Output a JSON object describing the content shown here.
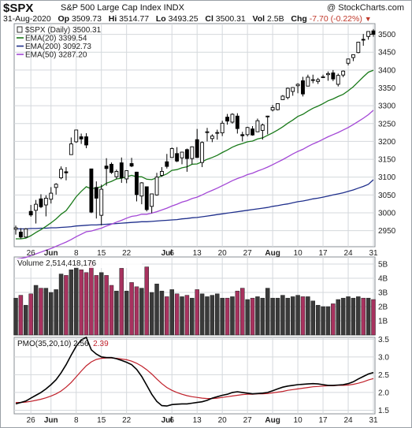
{
  "header": {
    "symbol": "$SPX",
    "description": "S&P 500 Large Cap Index  INDX",
    "brand": "@ StockCharts.com",
    "date": "31-Aug-2020",
    "open_label": "Op",
    "open": "3509.73",
    "high_label": "Hi",
    "high": "3514.77",
    "low_label": "Lo",
    "low": "3493.25",
    "close_label": "Cl",
    "close": "3500.31",
    "vol_label": "Vol",
    "vol": "2.5B",
    "chg_label": "Chg",
    "chg": "-7.70 (-0.22%)",
    "chg_arrow": "▼"
  },
  "colors": {
    "up_candle": "#ffffff",
    "down_candle": "#000000",
    "ema20": "#1a7a1a",
    "ema200": "#1f2f8c",
    "ema50": "#a347d6",
    "vol_up": "#3a3a3a",
    "vol_down": "#a8325f",
    "pmo": "#000000",
    "pmo_signal": "#c0202a"
  },
  "chart_data": [
    {
      "type": "candlestick",
      "title": "$SPX (Daily) 3500.31",
      "ylim": [
        2905,
        3530
      ],
      "yticks": [
        "2950",
        "3000",
        "3050",
        "3100",
        "3150",
        "3200",
        "3250",
        "3300",
        "3350",
        "3400",
        "3450",
        "3500"
      ],
      "x_tick_labels": [
        "26",
        "Jun",
        "8",
        "15",
        "22",
        "Jul",
        "6",
        "13",
        "20",
        "27",
        "Aug",
        "10",
        "17",
        "24",
        "31"
      ],
      "legend": [
        {
          "label": "$SPX (Daily) 3500.31",
          "color": "#000000"
        },
        {
          "label": "EMA(20) 3399.54",
          "color": "#1a7a1a"
        },
        {
          "label": "EMA(200) 3092.73",
          "color": "#1f2f8c"
        },
        {
          "label": "EMA(50) 3287.20",
          "color": "#a347d6"
        }
      ],
      "candles": [
        {
          "date": "May 20",
          "open": 2954,
          "high": 2964,
          "low": 2939,
          "close": 2958
        },
        {
          "date": "May 21",
          "open": 2946,
          "high": 2957,
          "low": 2928,
          "close": 2932
        },
        {
          "date": "May 22",
          "open": 2932,
          "high": 2957,
          "low": 2930,
          "close": 2955
        },
        {
          "date": "May 26",
          "open": 3004,
          "high": 3022,
          "low": 2989,
          "close": 2994
        },
        {
          "date": "May 27",
          "open": 3007,
          "high": 3036,
          "low": 2970,
          "close": 3024
        },
        {
          "date": "May 28",
          "open": 3039,
          "high": 3052,
          "low": 3013,
          "close": 3017
        },
        {
          "date": "May 29",
          "open": 3022,
          "high": 3049,
          "low": 2990,
          "close": 3041
        },
        {
          "date": "Jun 1",
          "open": 3038,
          "high": 3072,
          "low": 3026,
          "close": 3055
        },
        {
          "date": "Jun 2",
          "open": 3071,
          "high": 3083,
          "low": 3051,
          "close": 3080
        },
        {
          "date": "Jun 3",
          "open": 3098,
          "high": 3130,
          "low": 3094,
          "close": 3122
        },
        {
          "date": "Jun 4",
          "open": 3115,
          "high": 3128,
          "low": 3091,
          "close": 3112
        },
        {
          "date": "Jun 5",
          "open": 3163,
          "high": 3211,
          "low": 3163,
          "close": 3193
        },
        {
          "date": "Jun 8",
          "open": 3199,
          "high": 3233,
          "low": 3196,
          "close": 3232
        },
        {
          "date": "Jun 9",
          "open": 3213,
          "high": 3222,
          "low": 3193,
          "close": 3207
        },
        {
          "date": "Jun 10",
          "open": 3213,
          "high": 3223,
          "low": 3181,
          "close": 3190
        },
        {
          "date": "Jun 11",
          "open": 3123,
          "high": 3123,
          "low": 2999,
          "close": 3002
        },
        {
          "date": "Jun 12",
          "open": 3071,
          "high": 3088,
          "low": 2984,
          "close": 3041
        },
        {
          "date": "Jun 15",
          "open": 2993,
          "high": 3079,
          "low": 2965,
          "close": 3066
        },
        {
          "date": "Jun 16",
          "open": 3131,
          "high": 3153,
          "low": 3076,
          "close": 3124
        },
        {
          "date": "Jun 17",
          "open": 3136,
          "high": 3141,
          "low": 3109,
          "close": 3113
        },
        {
          "date": "Jun 18",
          "open": 3101,
          "high": 3121,
          "low": 3094,
          "close": 3116
        },
        {
          "date": "Jun 19",
          "open": 3140,
          "high": 3155,
          "low": 3084,
          "close": 3098
        },
        {
          "date": "Jun 22",
          "open": 3095,
          "high": 3118,
          "low": 3083,
          "close": 3118
        },
        {
          "date": "Jun 23",
          "open": 3138,
          "high": 3154,
          "low": 3128,
          "close": 3131
        },
        {
          "date": "Jun 24",
          "open": 3114,
          "high": 3115,
          "low": 3032,
          "close": 3051
        },
        {
          "date": "Jun 25",
          "open": 3047,
          "high": 3086,
          "low": 3024,
          "close": 3084
        },
        {
          "date": "Jun 26",
          "open": 3073,
          "high": 3073,
          "low": 3004,
          "close": 3009
        },
        {
          "date": "Jun 29",
          "open": 3018,
          "high": 3053,
          "low": 2999,
          "close": 3053
        },
        {
          "date": "Jun 30",
          "open": 3050,
          "high": 3112,
          "low": 3048,
          "close": 3100
        },
        {
          "date": "Jul 1",
          "open": 3105,
          "high": 3128,
          "low": 3101,
          "close": 3116
        },
        {
          "date": "Jul 2",
          "open": 3143,
          "high": 3165,
          "low": 3124,
          "close": 3130
        },
        {
          "date": "Jul 6",
          "open": 3155,
          "high": 3183,
          "low": 3155,
          "close": 3180
        },
        {
          "date": "Jul 7",
          "open": 3166,
          "high": 3184,
          "low": 3142,
          "close": 3145
        },
        {
          "date": "Jul 8",
          "open": 3154,
          "high": 3171,
          "low": 3136,
          "close": 3170
        },
        {
          "date": "Jul 9",
          "open": 3177,
          "high": 3180,
          "low": 3115,
          "close": 3152
        },
        {
          "date": "Jul 10",
          "open": 3152,
          "high": 3186,
          "low": 3136,
          "close": 3185
        },
        {
          "date": "Jul 13",
          "open": 3205,
          "high": 3235,
          "low": 3154,
          "close": 3155
        },
        {
          "date": "Jul 14",
          "open": 3141,
          "high": 3200,
          "low": 3128,
          "close": 3197
        },
        {
          "date": "Jul 15",
          "open": 3225,
          "high": 3238,
          "low": 3200,
          "close": 3227
        },
        {
          "date": "Jul 16",
          "open": 3208,
          "high": 3220,
          "low": 3198,
          "close": 3215
        },
        {
          "date": "Jul 17",
          "open": 3224,
          "high": 3233,
          "low": 3205,
          "close": 3225
        },
        {
          "date": "Jul 20",
          "open": 3224,
          "high": 3258,
          "low": 3215,
          "close": 3251
        },
        {
          "date": "Jul 21",
          "open": 3268,
          "high": 3277,
          "low": 3247,
          "close": 3257
        },
        {
          "date": "Jul 22",
          "open": 3254,
          "high": 3279,
          "low": 3250,
          "close": 3276
        },
        {
          "date": "Jul 23",
          "open": 3271,
          "high": 3279,
          "low": 3222,
          "close": 3236
        },
        {
          "date": "Jul 24",
          "open": 3219,
          "high": 3227,
          "low": 3200,
          "close": 3216
        },
        {
          "date": "Jul 27",
          "open": 3219,
          "high": 3241,
          "low": 3214,
          "close": 3239
        },
        {
          "date": "Jul 28",
          "open": 3235,
          "high": 3243,
          "low": 3216,
          "close": 3218
        },
        {
          "date": "Jul 29",
          "open": 3227,
          "high": 3264,
          "low": 3227,
          "close": 3258
        },
        {
          "date": "Jul 30",
          "open": 3231,
          "high": 3250,
          "low": 3205,
          "close": 3246
        },
        {
          "date": "Jul 31",
          "open": 3270,
          "high": 3272,
          "low": 3220,
          "close": 3271
        },
        {
          "date": "Aug 3",
          "open": 3288,
          "high": 3302,
          "low": 3284,
          "close": 3295
        },
        {
          "date": "Aug 4",
          "open": 3289,
          "high": 3306,
          "low": 3287,
          "close": 3306
        },
        {
          "date": "Aug 5",
          "open": 3317,
          "high": 3330,
          "low": 3318,
          "close": 3327
        },
        {
          "date": "Aug 6",
          "open": 3323,
          "high": 3351,
          "low": 3318,
          "close": 3349
        },
        {
          "date": "Aug 7",
          "open": 3340,
          "high": 3352,
          "low": 3328,
          "close": 3351
        },
        {
          "date": "Aug 10",
          "open": 3356,
          "high": 3363,
          "low": 3335,
          "close": 3360
        },
        {
          "date": "Aug 11",
          "open": 3370,
          "high": 3381,
          "low": 3326,
          "close": 3333
        },
        {
          "date": "Aug 12",
          "open": 3355,
          "high": 3387,
          "low": 3355,
          "close": 3380
        },
        {
          "date": "Aug 13",
          "open": 3372,
          "high": 3387,
          "low": 3363,
          "close": 3373
        },
        {
          "date": "Aug 14",
          "open": 3368,
          "high": 3378,
          "low": 3361,
          "close": 3373
        },
        {
          "date": "Aug 17",
          "open": 3380,
          "high": 3387,
          "low": 3379,
          "close": 3381
        },
        {
          "date": "Aug 18",
          "open": 3387,
          "high": 3396,
          "low": 3370,
          "close": 3390
        },
        {
          "date": "Aug 19",
          "open": 3392,
          "high": 3400,
          "low": 3369,
          "close": 3375
        },
        {
          "date": "Aug 20",
          "open": 3360,
          "high": 3390,
          "low": 3354,
          "close": 3385
        },
        {
          "date": "Aug 21",
          "open": 3386,
          "high": 3399,
          "low": 3380,
          "close": 3397
        },
        {
          "date": "Aug 24",
          "open": 3419,
          "high": 3432,
          "low": 3413,
          "close": 3431
        },
        {
          "date": "Aug 25",
          "open": 3435,
          "high": 3444,
          "low": 3425,
          "close": 3443
        },
        {
          "date": "Aug 26",
          "open": 3449,
          "high": 3479,
          "low": 3447,
          "close": 3478
        },
        {
          "date": "Aug 27",
          "open": 3486,
          "high": 3501,
          "low": 3468,
          "close": 3484
        },
        {
          "date": "Aug 28",
          "open": 3494,
          "high": 3509,
          "low": 3485,
          "close": 3508
        },
        {
          "date": "Aug 31",
          "open": 3509.73,
          "high": 3514.77,
          "low": 3493.25,
          "close": 3500.31
        }
      ],
      "ema20": [
        2927,
        2927,
        2929,
        2936,
        2945,
        2953,
        2962,
        2972,
        2983,
        2996,
        3006,
        3025,
        3045,
        3060,
        3073,
        3067,
        3070,
        3073,
        3083,
        3088,
        3095,
        3097,
        3101,
        3105,
        3101,
        3101,
        3094,
        3093,
        3098,
        3103,
        3109,
        3119,
        3121,
        3126,
        3129,
        3136,
        3137,
        3143,
        3150,
        3155,
        3161,
        3169,
        3176,
        3184,
        3190,
        3194,
        3199,
        3201,
        3207,
        3210,
        3217,
        3224,
        3232,
        3241,
        3251,
        3260,
        3270,
        3276,
        3285,
        3293,
        3299,
        3306,
        3314,
        3319,
        3326,
        3332,
        3342,
        3353,
        3367,
        3381,
        3394,
        3399.54
      ],
      "ema50": [
        2870,
        2872,
        2875,
        2880,
        2885,
        2890,
        2895,
        2900,
        2906,
        2912,
        2918,
        2925,
        2933,
        2940,
        2947,
        2949,
        2953,
        2957,
        2963,
        2968,
        2974,
        2979,
        2985,
        2990,
        2992,
        2996,
        2996,
        2999,
        3003,
        3008,
        3013,
        3019,
        3024,
        3030,
        3034,
        3040,
        3044,
        3050,
        3057,
        3063,
        3069,
        3076,
        3083,
        3090,
        3096,
        3101,
        3107,
        3111,
        3117,
        3122,
        3128,
        3135,
        3142,
        3149,
        3157,
        3165,
        3172,
        3178,
        3186,
        3193,
        3199,
        3206,
        3213,
        3219,
        3225,
        3232,
        3239,
        3247,
        3256,
        3265,
        3275,
        3287.2
      ],
      "ema200": [
        2955,
        2955,
        2955,
        2956,
        2956,
        2957,
        2957,
        2958,
        2958,
        2959,
        2960,
        2961,
        2963,
        2964,
        2965,
        2966,
        2966,
        2967,
        2968,
        2969,
        2970,
        2971,
        2972,
        2973,
        2974,
        2975,
        2975,
        2976,
        2977,
        2978,
        2979,
        2980,
        2981,
        2983,
        2984,
        2986,
        2987,
        2989,
        2991,
        2993,
        2995,
        2997,
        2999,
        3001,
        3003,
        3005,
        3007,
        3009,
        3011,
        3013,
        3015,
        3018,
        3020,
        3023,
        3025,
        3028,
        3031,
        3033,
        3036,
        3039,
        3041,
        3044,
        3047,
        3050,
        3053,
        3056,
        3060,
        3064,
        3069,
        3074,
        3080,
        3092.73
      ]
    },
    {
      "type": "bar",
      "title": "Volume 2,514,418,176",
      "ylim": [
        0,
        5.5
      ],
      "yticks": [
        "1B",
        "2B",
        "3B",
        "4B",
        "5B"
      ],
      "values": [
        2.6,
        2.8,
        2.1,
        2.9,
        3.5,
        3.3,
        3.3,
        3.0,
        3.2,
        4.3,
        4.2,
        4.6,
        4.8,
        4.6,
        4.4,
        5.2,
        4.2,
        4.4,
        4.2,
        3.5,
        3.1,
        4.7,
        3.1,
        3.7,
        3.4,
        3.3,
        4.8,
        3.0,
        3.6,
        3.1,
        2.7,
        3.2,
        2.9,
        2.7,
        2.8,
        2.6,
        3.2,
        2.9,
        2.7,
        2.8,
        2.9,
        2.6,
        2.6,
        2.7,
        3.1,
        3.3,
        2.5,
        2.6,
        2.7,
        2.6,
        3.3,
        2.6,
        2.6,
        2.8,
        2.6,
        2.7,
        2.8,
        2.7,
        2.7,
        2.4,
        2.1,
        2.0,
        2.0,
        2.2,
        2.5,
        2.6,
        2.7,
        2.6,
        2.7,
        2.6,
        2.6,
        2.5
      ]
    },
    {
      "type": "line",
      "title": "PMO(35,20,10) 2.56, 2.39",
      "ylim": [
        1.4,
        3.55
      ],
      "yticks": [
        "1.5",
        "2.0",
        "2.5",
        "3.0",
        "3.5"
      ],
      "series": [
        {
          "name": "PMO(35,20,10) 2.56",
          "values": [
            1.68,
            1.72,
            1.76,
            1.84,
            1.92,
            2.0,
            2.1,
            2.22,
            2.36,
            2.55,
            2.78,
            3.05,
            3.3,
            3.48,
            3.55,
            3.2,
            3.08,
            3.0,
            2.98,
            2.98,
            2.95,
            2.9,
            2.85,
            2.78,
            2.65,
            2.45,
            2.2,
            1.95,
            1.75,
            1.63,
            1.62,
            1.66,
            1.67,
            1.68,
            1.68,
            1.7,
            1.72,
            1.74,
            1.78,
            1.84,
            1.88,
            1.92,
            1.95,
            2.0,
            2.02,
            2.0,
            1.98,
            1.96,
            1.97,
            1.98,
            2.0,
            2.05,
            2.1,
            2.15,
            2.18,
            2.2,
            2.22,
            2.23,
            2.24,
            2.25,
            2.24,
            2.22,
            2.2,
            2.2,
            2.21,
            2.22,
            2.25,
            2.3,
            2.38,
            2.45,
            2.52,
            2.56
          ]
        },
        {
          "name": "2.39",
          "values": [
            1.72,
            1.72,
            1.73,
            1.75,
            1.78,
            1.81,
            1.85,
            1.9,
            1.96,
            2.04,
            2.15,
            2.28,
            2.44,
            2.6,
            2.75,
            2.86,
            2.93,
            2.96,
            2.97,
            2.97,
            2.96,
            2.94,
            2.92,
            2.88,
            2.82,
            2.74,
            2.64,
            2.52,
            2.38,
            2.25,
            2.14,
            2.06,
            2.0,
            1.95,
            1.91,
            1.88,
            1.86,
            1.84,
            1.83,
            1.83,
            1.84,
            1.86,
            1.88,
            1.9,
            1.92,
            1.94,
            1.95,
            1.95,
            1.96,
            1.96,
            1.97,
            1.99,
            2.01,
            2.03,
            2.06,
            2.08,
            2.1,
            2.12,
            2.14,
            2.16,
            2.17,
            2.18,
            2.19,
            2.19,
            2.2,
            2.2,
            2.21,
            2.23,
            2.26,
            2.3,
            2.35,
            2.39
          ]
        }
      ]
    }
  ]
}
